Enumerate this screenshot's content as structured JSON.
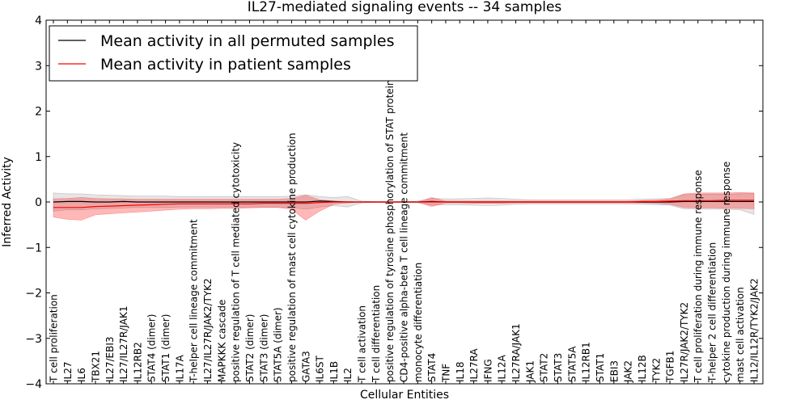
{
  "chart_data": {
    "type": "line",
    "title": "IL27-mediated signaling events -- 34 samples",
    "xlabel": "Cellular Entities",
    "ylabel": "Inferred Activity",
    "ylim": [
      -4,
      4
    ],
    "yticks": [
      "−4",
      "−3",
      "−2",
      "−1",
      "0",
      "1",
      "2",
      "3",
      "4"
    ],
    "legend": {
      "location": "top-left",
      "entries": [
        {
          "label": "Mean activity in all permuted samples",
          "color": "#000000"
        },
        {
          "label": "Mean activity in patient samples",
          "color": "#ff0000"
        }
      ]
    },
    "categories": [
      "T cell proliferation",
      "IL27",
      "IL6",
      "TBX21",
      "IL27/EBI3",
      "IL27/IL27R/JAK1",
      "IL12RB2",
      "STAT4 (dimer)",
      "STAT1 (dimer)",
      "IL17A",
      "T-helper cell lineage commitment",
      "IL27/IL27R/JAK2/TYK2",
      "MAPKKK cascade",
      "positive regulation of T cell mediated cytotoxicity",
      "STAT2 (dimer)",
      "STAT3 (dimer)",
      "STAT5A (dimer)",
      "positive regulation of mast cell cytokine production",
      "GATA3",
      "IL6ST",
      "IL1B",
      "IL2",
      "T cell activation",
      "T cell differentiation",
      "positive regulation of tyrosine phosphorylation of STAT protein",
      "CD4-positive alpha-beta T cell lineage commitment",
      "monocyte differentiation",
      "STAT4",
      "TNF",
      "IL18",
      "IL27RA",
      "IFNG",
      "IL12A",
      "IL27RA/JAK1",
      "JAK1",
      "STAT2",
      "STAT3",
      "STAT5A",
      "IL12RB1",
      "STAT1",
      "EBI3",
      "JAK2",
      "IL12B",
      "TYK2",
      "TGFB1",
      "IL27R/JAK2/TYK2",
      "T cell proliferation during immune response",
      "T-helper 2 cell differentiation",
      "cytokine production during immune response",
      "mast cell activation",
      "IL12/IL12R/TYK2/JAK2"
    ],
    "series": [
      {
        "name": "Mean activity in all permuted samples",
        "color": "#000000",
        "values": [
          0.0,
          0.01,
          0.01,
          0.0,
          0.0,
          0.01,
          0.0,
          0.0,
          0.0,
          0.0,
          0.0,
          0.0,
          0.0,
          0.0,
          0.0,
          0.0,
          0.0,
          0.0,
          0.0,
          0.02,
          0.01,
          0.0,
          0.0,
          0.0,
          0.0,
          0.0,
          0.0,
          0.01,
          0.0,
          0.0,
          0.0,
          0.0,
          0.0,
          0.0,
          0.0,
          0.0,
          0.0,
          0.0,
          0.0,
          0.0,
          0.0,
          0.0,
          0.0,
          0.0,
          0.0,
          0.01,
          0.01,
          0.01,
          0.01,
          0.01,
          0.01
        ],
        "lower": [
          -0.2,
          -0.17,
          -0.17,
          -0.15,
          -0.14,
          -0.13,
          -0.12,
          -0.12,
          -0.12,
          -0.11,
          -0.11,
          -0.11,
          -0.11,
          -0.11,
          -0.11,
          -0.11,
          -0.11,
          -0.12,
          -0.16,
          -0.11,
          -0.08,
          -0.11,
          -0.02,
          -0.01,
          -0.01,
          -0.01,
          -0.02,
          -0.07,
          -0.06,
          -0.06,
          -0.07,
          -0.08,
          -0.07,
          -0.05,
          -0.04,
          -0.04,
          -0.04,
          -0.04,
          -0.04,
          -0.04,
          -0.04,
          -0.04,
          -0.05,
          -0.06,
          -0.07,
          -0.15,
          -0.16,
          -0.16,
          -0.16,
          -0.17,
          -0.27
        ],
        "upper": [
          0.2,
          0.18,
          0.18,
          0.16,
          0.15,
          0.14,
          0.13,
          0.13,
          0.13,
          0.12,
          0.12,
          0.12,
          0.12,
          0.12,
          0.12,
          0.12,
          0.12,
          0.13,
          0.16,
          0.12,
          0.1,
          0.12,
          0.02,
          0.01,
          0.01,
          0.01,
          0.02,
          0.08,
          0.07,
          0.07,
          0.08,
          0.09,
          0.08,
          0.06,
          0.05,
          0.05,
          0.05,
          0.05,
          0.05,
          0.05,
          0.05,
          0.05,
          0.06,
          0.07,
          0.08,
          0.16,
          0.17,
          0.17,
          0.17,
          0.18,
          0.19
        ]
      },
      {
        "name": "Mean activity in patient samples",
        "color": "#ff0000",
        "values": [
          -0.12,
          -0.12,
          -0.12,
          -0.1,
          -0.09,
          -0.08,
          -0.07,
          -0.06,
          -0.05,
          -0.04,
          -0.04,
          -0.04,
          -0.04,
          -0.04,
          -0.04,
          -0.03,
          -0.03,
          -0.03,
          -0.03,
          -0.01,
          0.0,
          0.0,
          0.0,
          0.0,
          0.0,
          0.0,
          0.0,
          0.0,
          0.0,
          0.0,
          0.0,
          0.0,
          0.0,
          0.0,
          0.0,
          0.0,
          0.0,
          0.0,
          0.0,
          0.0,
          0.0,
          0.0,
          0.01,
          0.01,
          0.02,
          0.03,
          0.03,
          0.03,
          0.04,
          0.04,
          0.04
        ],
        "lower": [
          -0.33,
          -0.38,
          -0.4,
          -0.28,
          -0.26,
          -0.24,
          -0.22,
          -0.2,
          -0.18,
          -0.16,
          -0.15,
          -0.15,
          -0.14,
          -0.14,
          -0.13,
          -0.12,
          -0.12,
          -0.16,
          -0.4,
          -0.2,
          -0.05,
          -0.02,
          0.0,
          0.0,
          0.0,
          0.0,
          0.0,
          -0.1,
          -0.02,
          -0.02,
          -0.03,
          -0.03,
          -0.03,
          -0.02,
          -0.02,
          -0.02,
          -0.02,
          -0.02,
          -0.02,
          -0.02,
          -0.02,
          -0.02,
          -0.02,
          -0.03,
          -0.05,
          -0.12,
          -0.13,
          -0.13,
          -0.14,
          -0.14,
          -0.15
        ],
        "upper": [
          0.07,
          0.08,
          0.1,
          0.08,
          0.07,
          0.07,
          0.06,
          0.06,
          0.06,
          0.06,
          0.06,
          0.06,
          0.06,
          0.06,
          0.06,
          0.06,
          0.06,
          0.08,
          0.15,
          0.05,
          0.02,
          0.01,
          0.0,
          0.0,
          0.0,
          0.0,
          0.0,
          0.1,
          0.02,
          0.02,
          0.02,
          0.02,
          0.02,
          0.02,
          0.02,
          0.02,
          0.02,
          0.02,
          0.02,
          0.02,
          0.02,
          0.02,
          0.03,
          0.04,
          0.07,
          0.18,
          0.2,
          0.2,
          0.2,
          0.21,
          0.2
        ]
      }
    ]
  }
}
